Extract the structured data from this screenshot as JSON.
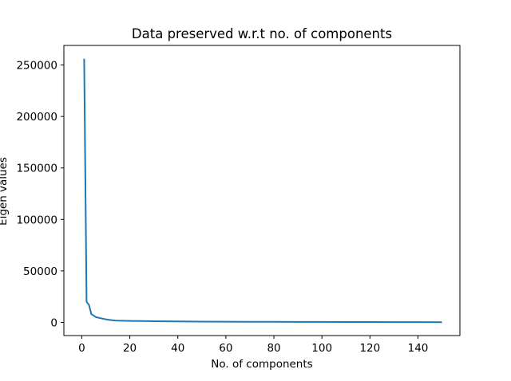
{
  "chart_data": {
    "type": "line",
    "title": "Data preserved w.r.t no. of components",
    "xlabel": "No. of components",
    "ylabel": "Eigen values",
    "xlim": [
      -7.45,
      157.45
    ],
    "ylim": [
      -12800,
      269000
    ],
    "xticks": [
      0,
      20,
      40,
      60,
      80,
      100,
      120,
      140
    ],
    "yticks": [
      0,
      50000,
      100000,
      150000,
      200000,
      250000
    ],
    "grid": false,
    "line_color": "#1f77b4",
    "series": [
      {
        "x": [
          1,
          2,
          3,
          4,
          5,
          6,
          7,
          8,
          9,
          10,
          11,
          12,
          13,
          14,
          15,
          16,
          17,
          18,
          19,
          20,
          25,
          30,
          35,
          40,
          50,
          60,
          70,
          80,
          90,
          100,
          110,
          120,
          130,
          140,
          150
        ],
        "values": [
          256000,
          20000,
          17000,
          8000,
          6500,
          5000,
          4500,
          4000,
          3500,
          3000,
          2600,
          2300,
          2000,
          1800,
          1700,
          1650,
          1600,
          1550,
          1500,
          1450,
          1300,
          1150,
          1000,
          900,
          750,
          650,
          600,
          550,
          500,
          450,
          400,
          350,
          300,
          250,
          200
        ]
      }
    ]
  }
}
